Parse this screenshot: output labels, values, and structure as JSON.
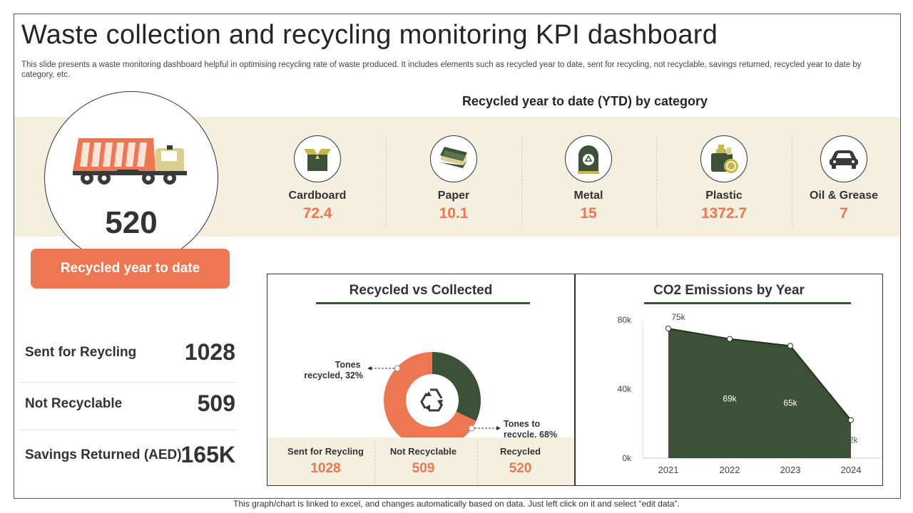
{
  "title": "Waste collection and recycling monitoring KPI dashboard",
  "subtitle": "This slide presents a waste monitoring dashboard helpful in optimising recycling rate of waste produced. It includes elements such as recycled year to date, sent for recycling, not recyclable, savings returned, recycled year to date by category, etc.",
  "hero": {
    "value": "520",
    "button_label": "Recycled year to date"
  },
  "stats": [
    {
      "label": "Sent for Reycling",
      "value": "1028"
    },
    {
      "label": "Not Recyclable",
      "value": "509"
    },
    {
      "label": "Savings Returned (AED)",
      "value": "165K"
    }
  ],
  "categories_title": "Recycled year to date (YTD) by category",
  "categories": [
    {
      "label": "Cardboard",
      "value": "72.4",
      "icon": "box-icon"
    },
    {
      "label": "Paper",
      "value": "10.1",
      "icon": "paper-stack-icon"
    },
    {
      "label": "Metal",
      "value": "15",
      "icon": "metal-bin-icon"
    },
    {
      "label": "Plastic",
      "value": "1372.7",
      "icon": "plastic-bottles-icon"
    },
    {
      "label": "Oil & Grease",
      "value": "7",
      "icon": "car-icon"
    }
  ],
  "summary_strip": [
    {
      "label": "Sent for Reycling",
      "value": "1028"
    },
    {
      "label": "Not Recyclable",
      "value": "509"
    },
    {
      "label": "Recycled",
      "value": "520"
    }
  ],
  "colors": {
    "accent": "#ee7651",
    "dark_green": "#3c5137",
    "band": "#f3f0df"
  },
  "chart_data": [
    {
      "type": "pie",
      "title": "Recycled vs Collected",
      "categories": [
        "Tones recycled",
        "Tones to recycle"
      ],
      "values": [
        32,
        68
      ],
      "annotations": [
        [
          "Tones",
          "recycled, 32%"
        ],
        [
          "Tones to",
          "recycle, 68%"
        ]
      ],
      "colors": [
        "#3c5137",
        "#ee7651"
      ]
    },
    {
      "type": "area",
      "title": "CO2 Emissions by Year",
      "categories": [
        "2021",
        "2022",
        "2023",
        "2024"
      ],
      "values": [
        75,
        69,
        65,
        22
      ],
      "data_labels": [
        "75k",
        "69k",
        "65k",
        "22k"
      ],
      "ylim": [
        0,
        80
      ],
      "yticks": [
        "0k",
        "40k",
        "80k"
      ],
      "xlabel": "",
      "ylabel": "",
      "grid": false,
      "color": "#3c5137"
    }
  ],
  "footer": "This graph/chart is linked to excel,  and changes automatically based on data. Just left click on it and select “edit data”."
}
